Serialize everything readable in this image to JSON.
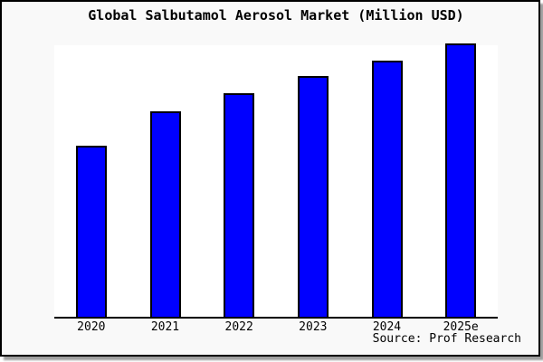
{
  "chart_data": {
    "type": "bar",
    "title": "Global Salbutamol Aerosol Market (Million USD)",
    "categories": [
      "2020",
      "2021",
      "2022",
      "2023",
      "2024",
      "2025e"
    ],
    "values": [
      188,
      225,
      245,
      264,
      281,
      300
    ],
    "ylim": [
      0,
      300
    ],
    "xlabel": "",
    "ylabel": "",
    "grid": false,
    "legend": false,
    "y_axis_ticks_visible": false,
    "value_unit": "relative height (y-axis unlabeled in figure)",
    "bar_fill_color": "#0000ff",
    "bar_border_color": "#000000",
    "axis_line_color": "#000000",
    "plot_background_color": "#ffffff",
    "figure_background_color": "#f9f9f9"
  },
  "source": {
    "label": "Source: Prof Research"
  }
}
